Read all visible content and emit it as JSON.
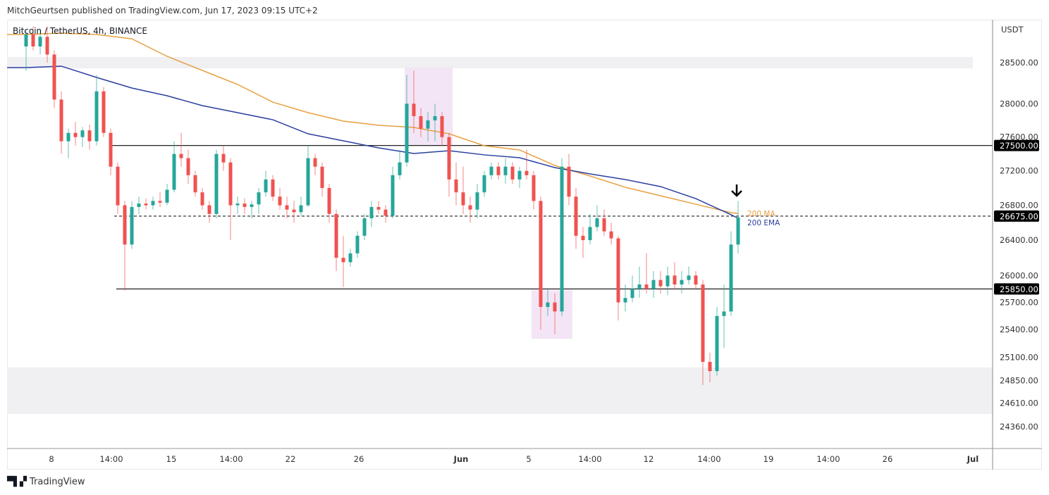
{
  "header": {
    "published": "MitchGeurtsen published on TradingView.com, Jun 17, 2023 09:15 UTC+2",
    "symbol": "Bitcoin / TetherUS, 4h, BINANCE"
  },
  "footer": {
    "brand": "TradingView",
    "logo_mark": "TV"
  },
  "colors": {
    "up": "#26a69a",
    "down": "#ef5350",
    "ma": "#e8a040",
    "ema": "#2a3fa0",
    "zone_gray": "#f0f0f3",
    "zone_pink": "#f3e5f5"
  },
  "chart_data": {
    "type": "candlestick",
    "title": "Bitcoin / TetherUS, 4h, BINANCE",
    "y_unit": "USDT",
    "y_scale": "log",
    "ylim": [
      24200,
      29000
    ],
    "grid": false,
    "y_ticks": [
      "28500.00",
      "28000.00",
      "27600.00",
      "27200.00",
      "26800.00",
      "26400.00",
      "26000.00",
      "25700.00",
      "25400.00",
      "25100.00",
      "24850.00",
      "24610.00",
      "24360.00"
    ],
    "y_tick_values": [
      28500,
      28000,
      27600,
      27200,
      26800,
      26400,
      26000,
      25700,
      25400,
      25100,
      24850,
      24610,
      24360
    ],
    "x_ticks": [
      "8",
      "14:00",
      "15",
      "14:00",
      "22",
      "26",
      "Jun",
      "5",
      "14:00",
      "12",
      "14:00",
      "19",
      "14:00",
      "26",
      "Jul"
    ],
    "ohlc": [
      [
        28700,
        28900,
        28400,
        28850
      ],
      [
        28850,
        28950,
        28650,
        28700
      ],
      [
        28700,
        28900,
        28600,
        28820
      ],
      [
        28820,
        28950,
        28500,
        28600
      ],
      [
        28600,
        28650,
        27950,
        28050
      ],
      [
        28050,
        28150,
        27400,
        27550
      ],
      [
        27550,
        27700,
        27350,
        27650
      ],
      [
        27650,
        27780,
        27500,
        27600
      ],
      [
        27600,
        27720,
        27480,
        27680
      ],
      [
        27680,
        27750,
        27450,
        27550
      ],
      [
        27550,
        28350,
        27500,
        28150
      ],
      [
        28150,
        28200,
        27600,
        27650
      ],
      [
        27650,
        27700,
        27150,
        27250
      ],
      [
        27250,
        27300,
        26700,
        26800
      ],
      [
        26800,
        26850,
        25830,
        26350
      ],
      [
        26350,
        26850,
        26300,
        26780
      ],
      [
        26780,
        26900,
        26700,
        26820
      ],
      [
        26820,
        26880,
        26750,
        26800
      ],
      [
        26800,
        26900,
        26750,
        26850
      ],
      [
        26850,
        26950,
        26780,
        26830
      ],
      [
        26830,
        27050,
        26800,
        26980
      ],
      [
        26980,
        27550,
        26950,
        27400
      ],
      [
        27400,
        27650,
        27250,
        27350
      ],
      [
        27350,
        27450,
        27050,
        27150
      ],
      [
        27150,
        27200,
        26900,
        26950
      ],
      [
        26950,
        27000,
        26750,
        26800
      ],
      [
        26800,
        26850,
        26600,
        26700
      ],
      [
        26700,
        27450,
        26650,
        27400
      ],
      [
        27400,
        27500,
        27200,
        27300
      ],
      [
        27300,
        27350,
        26400,
        26800
      ],
      [
        26800,
        26900,
        26700,
        26820
      ],
      [
        26820,
        26880,
        26700,
        26780
      ],
      [
        26780,
        26850,
        26650,
        26810
      ],
      [
        26810,
        27000,
        26700,
        26950
      ],
      [
        26950,
        27200,
        26900,
        27100
      ],
      [
        27100,
        27150,
        26850,
        26900
      ],
      [
        26900,
        27000,
        26750,
        26800
      ],
      [
        26800,
        26900,
        26650,
        26750
      ],
      [
        26750,
        26850,
        26600,
        26720
      ],
      [
        26720,
        26900,
        26680,
        26800
      ],
      [
        26800,
        27500,
        26780,
        27350
      ],
      [
        27350,
        27400,
        27150,
        27250
      ],
      [
        27250,
        27300,
        26900,
        27000
      ],
      [
        27000,
        27050,
        26600,
        26700
      ],
      [
        26700,
        26750,
        26050,
        26200
      ],
      [
        26200,
        26450,
        25870,
        26150
      ],
      [
        26150,
        26300,
        26100,
        26250
      ],
      [
        26250,
        26500,
        26200,
        26450
      ],
      [
        26450,
        26700,
        26400,
        26650
      ],
      [
        26650,
        26850,
        26550,
        26780
      ],
      [
        26780,
        26850,
        26700,
        26750
      ],
      [
        26750,
        26800,
        26600,
        26680
      ],
      [
        26680,
        27250,
        26650,
        27150
      ],
      [
        27150,
        27450,
        27100,
        27300
      ],
      [
        27300,
        28350,
        27250,
        28000
      ],
      [
        28000,
        28400,
        27650,
        27850
      ],
      [
        27850,
        27950,
        27600,
        27700
      ],
      [
        27700,
        27900,
        27550,
        27800
      ],
      [
        27800,
        28000,
        27550,
        27850
      ],
      [
        27850,
        27900,
        27500,
        27600
      ],
      [
        27600,
        27650,
        26900,
        27100
      ],
      [
        27100,
        27300,
        26800,
        26950
      ],
      [
        26950,
        27250,
        26700,
        26800
      ],
      [
        26800,
        26900,
        26600,
        26750
      ],
      [
        26750,
        27050,
        26650,
        26950
      ],
      [
        26950,
        27200,
        26900,
        27150
      ],
      [
        27150,
        27300,
        27100,
        27250
      ],
      [
        27250,
        27300,
        27100,
        27150
      ],
      [
        27150,
        27350,
        27050,
        27250
      ],
      [
        27250,
        27300,
        27050,
        27100
      ],
      [
        27100,
        27250,
        27000,
        27200
      ],
      [
        27200,
        27450,
        27100,
        27150
      ],
      [
        27150,
        27200,
        26750,
        26850
      ],
      [
        26850,
        26900,
        25400,
        25650
      ],
      [
        25650,
        25850,
        25550,
        25700
      ],
      [
        25700,
        25800,
        25350,
        25600
      ],
      [
        25600,
        27350,
        25550,
        27250
      ],
      [
        27250,
        27400,
        26800,
        26900
      ],
      [
        26900,
        27000,
        26300,
        26450
      ],
      [
        26450,
        26550,
        26200,
        26400
      ],
      [
        26400,
        26700,
        26350,
        26550
      ],
      [
        26550,
        26800,
        26500,
        26650
      ],
      [
        26650,
        26750,
        26450,
        26500
      ],
      [
        26500,
        26600,
        26350,
        26420
      ],
      [
        26420,
        26450,
        25500,
        25700
      ],
      [
        25700,
        25900,
        25600,
        25750
      ],
      [
        25750,
        26000,
        25700,
        25850
      ],
      [
        25850,
        26100,
        25750,
        25900
      ],
      [
        25900,
        26250,
        25800,
        25850
      ],
      [
        25850,
        26050,
        25750,
        25950
      ],
      [
        25950,
        26050,
        25800,
        25880
      ],
      [
        25880,
        26100,
        25780,
        26000
      ],
      [
        26000,
        26150,
        25850,
        25900
      ],
      [
        25900,
        26050,
        25800,
        25950
      ],
      [
        25950,
        26100,
        25900,
        26000
      ],
      [
        26000,
        26050,
        25850,
        25900
      ],
      [
        25900,
        25950,
        24800,
        25050
      ],
      [
        25050,
        25150,
        24830,
        24950
      ],
      [
        24950,
        25650,
        24900,
        25550
      ],
      [
        25550,
        25900,
        25200,
        25600
      ],
      [
        25600,
        26500,
        25550,
        26350
      ],
      [
        26350,
        26850,
        26250,
        26660
      ]
    ],
    "series": [
      {
        "name": "200 MA",
        "color": "#e8a040",
        "index": [
          0,
          5,
          10,
          15,
          20,
          25,
          30,
          35,
          40,
          45,
          50,
          55,
          60,
          65,
          70,
          75,
          80,
          85,
          90,
          95,
          100,
          101
        ],
        "values": [
          28848,
          28866,
          28848,
          28795,
          28578,
          28405,
          28234,
          28019,
          27892,
          27791,
          27741,
          27715,
          27639,
          27497,
          27447,
          27264,
          27140,
          27009,
          26910,
          26812,
          26715,
          26706
        ]
      },
      {
        "name": "200 EMA",
        "color": "#2a3fa0",
        "index": [
          0,
          5,
          10,
          15,
          20,
          25,
          30,
          35,
          40,
          45,
          50,
          55,
          60,
          65,
          70,
          75,
          80,
          85,
          90,
          95,
          100,
          101
        ],
        "values": [
          28440,
          28457,
          28319,
          28190,
          28096,
          27977,
          27892,
          27807,
          27639,
          27555,
          27472,
          27405,
          27438,
          27389,
          27355,
          27239,
          27165,
          27099,
          27017,
          26877,
          26691,
          26650
        ]
      }
    ],
    "horizontal_levels": [
      {
        "value": 27500,
        "label": "27500.00",
        "style": "solid"
      },
      {
        "value": 26675,
        "label": "26675.00",
        "style": "dashed"
      },
      {
        "value": 25850,
        "label": "25850.00",
        "style": "solid"
      }
    ],
    "zones": [
      {
        "kind": "gray",
        "from": 28430,
        "to": 28570
      },
      {
        "kind": "gray",
        "from": 24494,
        "to": 24990
      },
      {
        "kind": "pink",
        "from": 27500,
        "to": 28440,
        "start_index": 54,
        "end_index": 60
      },
      {
        "kind": "pink",
        "from": 25300,
        "to": 25840,
        "start_index": 72,
        "end_index": 77
      }
    ],
    "annotations": [
      {
        "type": "arrow-down",
        "index": 101
      }
    ]
  }
}
